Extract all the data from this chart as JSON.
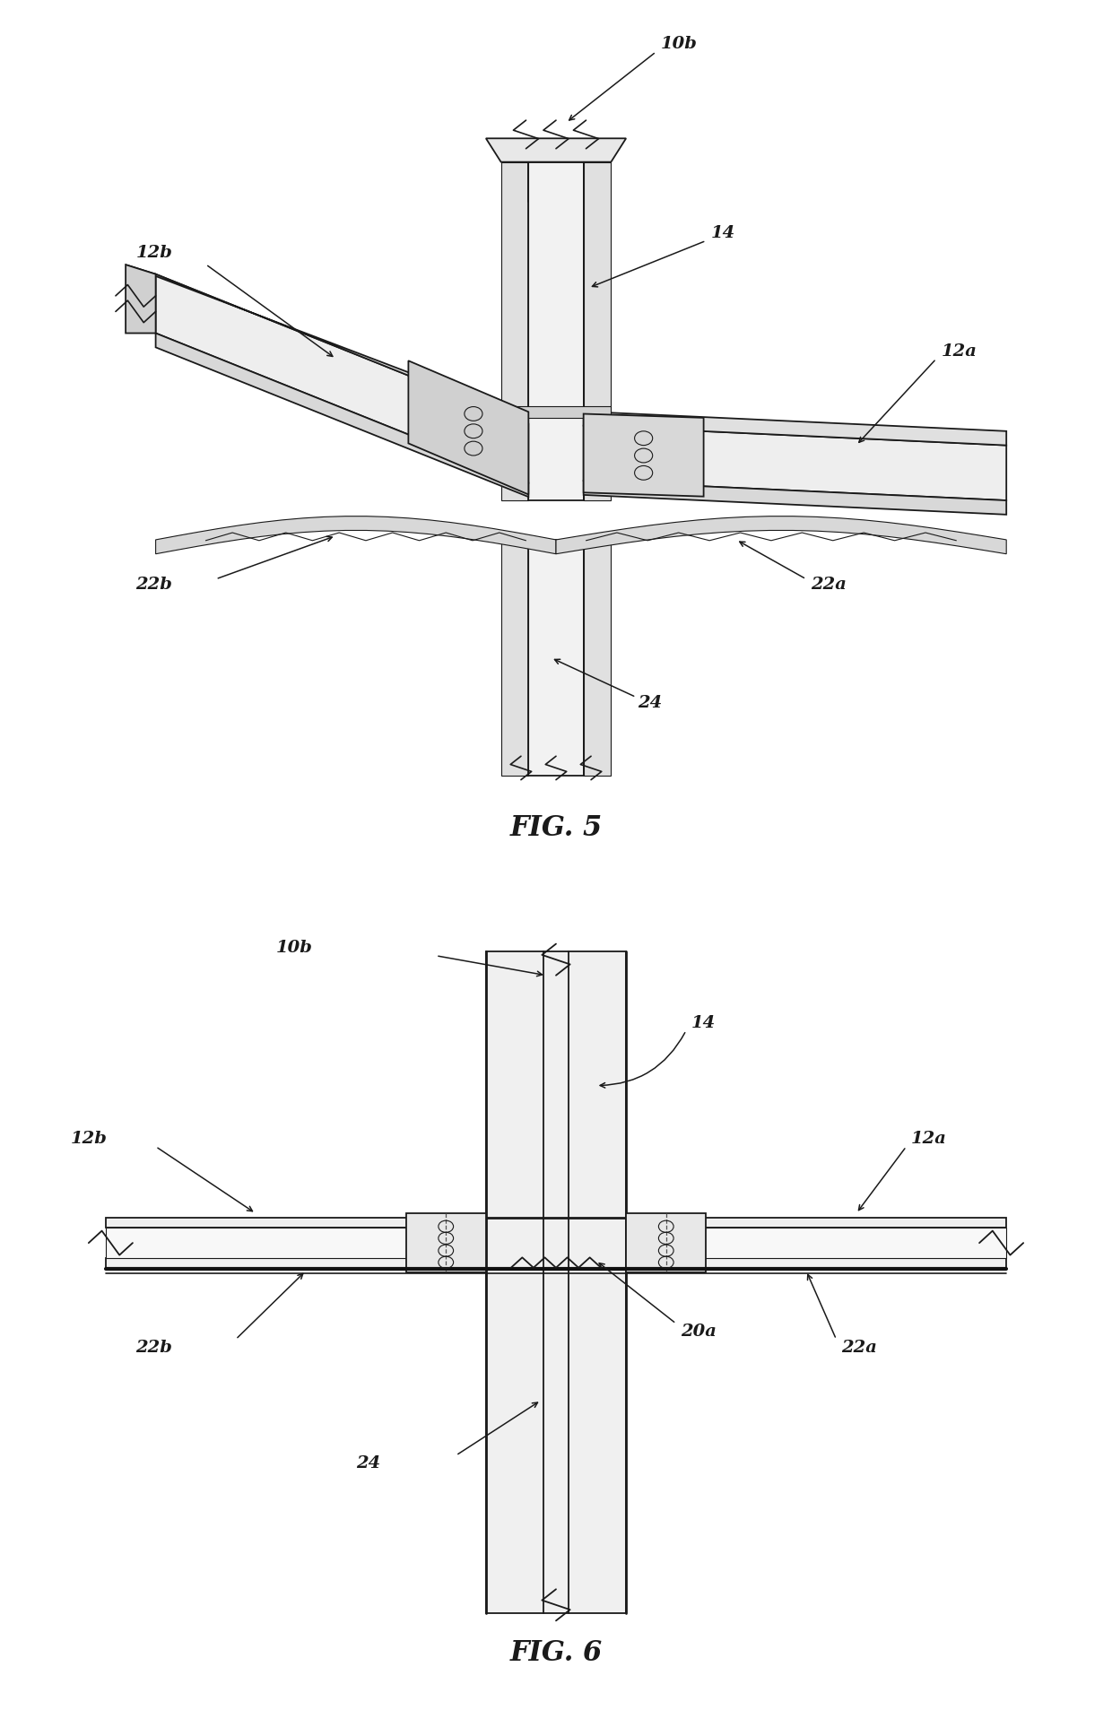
{
  "bg_color": "#ffffff",
  "line_color": "#1a1a1a",
  "fig_width": 12.4,
  "fig_height": 19.08,
  "fig5_title": "FIG. 5",
  "fig6_title": "FIG. 6",
  "lw_thin": 0.8,
  "lw_med": 1.3,
  "lw_thick": 2.0,
  "label_fs": 14,
  "title_fs": 22,
  "labels": {
    "10b": "10b",
    "12b_fig5": "12b",
    "12a_fig5": "12a",
    "14_fig5": "14",
    "22b_fig5": "22b",
    "22a_fig5": "22a",
    "24_fig5": "24",
    "10b_fig6": "10b",
    "12b_fig6": "12b",
    "12a_fig6": "12a",
    "14_fig6": "14",
    "22b_fig6": "22b",
    "22a_fig6": "22a",
    "24_fig6": "24",
    "20a_fig6": "20a"
  }
}
